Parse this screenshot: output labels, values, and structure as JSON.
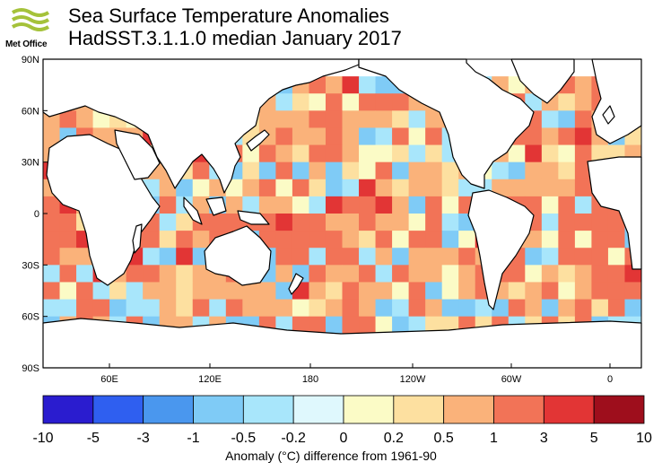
{
  "logo": {
    "text": "Met Office",
    "color": "#a5c23a"
  },
  "title": "Sea Surface Temperature Anomalies",
  "subtitle": "HadSST.3.1.1.0 median January 2017",
  "lat_labels": [
    "90N",
    "60N",
    "30N",
    "0",
    "30S",
    "60S",
    "90S"
  ],
  "lon_labels": [
    "60E",
    "120E",
    "180",
    "120W",
    "60W",
    "0"
  ],
  "colorbar": {
    "ticks": [
      "-10",
      "-5",
      "-3",
      "-1",
      "-0.5",
      "-0.2",
      "0",
      "0.2",
      "0.5",
      "1",
      "3",
      "5",
      "10"
    ],
    "colors": [
      "#2a1ccf",
      "#2f5ff0",
      "#4a97ee",
      "#7fcbf6",
      "#a8e6fb",
      "#dff8fd",
      "#fbfbc6",
      "#fde0a0",
      "#fab27a",
      "#f27357",
      "#e23535",
      "#9e0e1c"
    ]
  },
  "caption": "Anomaly (°C) difference from 1961-90",
  "map": {
    "land_color": "#ffffff",
    "coast_color": "#000000"
  }
}
